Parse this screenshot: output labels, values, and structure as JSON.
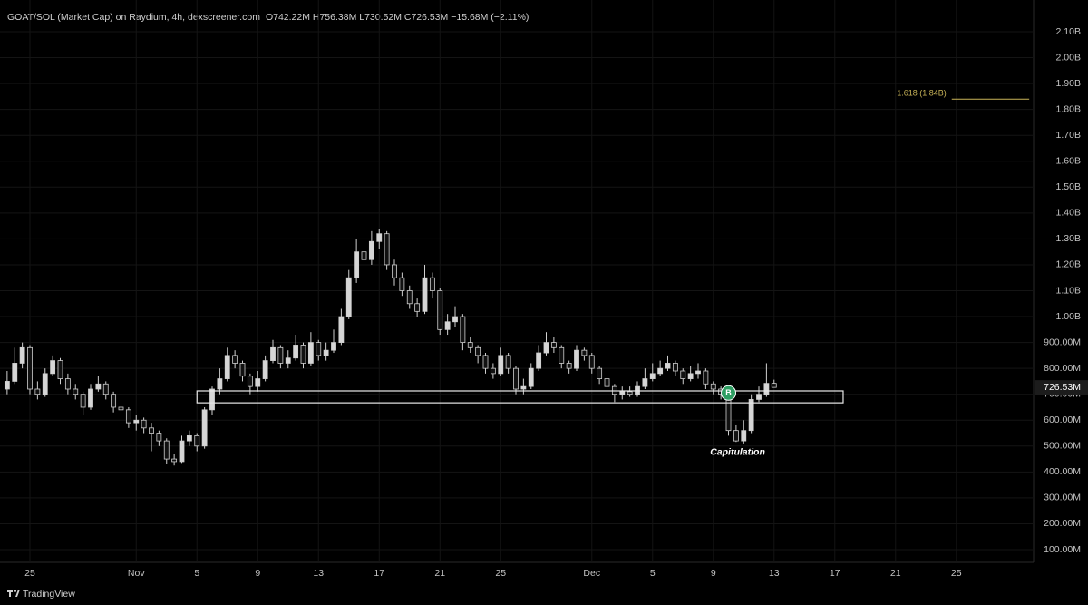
{
  "chart_data": {
    "type": "candlestick",
    "title": "GOAT/SOL (Market Cap) on Raydium, 4h, dexscreener.com",
    "subtitle": "O742.22M H756.38M L730.52M C726.53M −15.68M (−2.11%)",
    "footer": "TradingView",
    "up_color": "#d6d6d6",
    "down_color": "#111111",
    "grid": true,
    "xlim": [
      -1.97,
      65.79
    ],
    "xticks": [
      {
        "value": 0,
        "label": "25"
      },
      {
        "value": 7,
        "label": "Nov"
      },
      {
        "value": 11,
        "label": "5"
      },
      {
        "value": 15,
        "label": "9"
      },
      {
        "value": 19,
        "label": "13"
      },
      {
        "value": 23,
        "label": "17"
      },
      {
        "value": 27,
        "label": "21"
      },
      {
        "value": 31,
        "label": "25"
      },
      {
        "value": 37,
        "label": "Dec"
      },
      {
        "value": 41,
        "label": "5"
      },
      {
        "value": 45,
        "label": "9"
      },
      {
        "value": 49,
        "label": "13"
      },
      {
        "value": 53,
        "label": "17"
      },
      {
        "value": 57,
        "label": "21"
      },
      {
        "value": 61,
        "label": "25"
      }
    ],
    "ylim": [
      51,
      2152.5
    ],
    "yticks": [
      {
        "value": 100,
        "label": "100.00M"
      },
      {
        "value": 200,
        "label": "200.00M"
      },
      {
        "value": 300,
        "label": "300.00M"
      },
      {
        "value": 400,
        "label": "400.00M"
      },
      {
        "value": 500,
        "label": "500.00M"
      },
      {
        "value": 600,
        "label": "600.00M"
      },
      {
        "value": 700,
        "label": "700.00M"
      },
      {
        "value": 800,
        "label": "800.00M"
      },
      {
        "value": 900,
        "label": "900.00M"
      },
      {
        "value": 1000,
        "label": "1.00B"
      },
      {
        "value": 1100,
        "label": "1.10B"
      },
      {
        "value": 1200,
        "label": "1.20B"
      },
      {
        "value": 1300,
        "label": "1.30B"
      },
      {
        "value": 1400,
        "label": "1.40B"
      },
      {
        "value": 1500,
        "label": "1.50B"
      },
      {
        "value": 1600,
        "label": "1.60B"
      },
      {
        "value": 1700,
        "label": "1.70B"
      },
      {
        "value": 1800,
        "label": "1.80B"
      },
      {
        "value": 1900,
        "label": "1.90B"
      },
      {
        "value": 2000,
        "label": "2.00B"
      },
      {
        "value": 2100,
        "label": "2.10B"
      }
    ],
    "x": [
      -1.5,
      -1,
      -0.5,
      0,
      0.5,
      1,
      1.5,
      2,
      2.5,
      3,
      3.5,
      4,
      4.5,
      5,
      5.5,
      6,
      6.5,
      7,
      7.5,
      8,
      8.5,
      9,
      9.5,
      10,
      10.5,
      11,
      11.5,
      12,
      12.5,
      13,
      13.5,
      14,
      14.5,
      15,
      15.5,
      16,
      16.5,
      17,
      17.5,
      18,
      18.5,
      19,
      19.5,
      20,
      20.5,
      21,
      21.5,
      22,
      22.5,
      23,
      23.5,
      24,
      24.5,
      25,
      25.5,
      26,
      26.5,
      27,
      27.5,
      28,
      28.5,
      29,
      29.5,
      30,
      30.5,
      31,
      31.5,
      32,
      32.5,
      33,
      33.5,
      34,
      34.5,
      35,
      35.5,
      36,
      36.5,
      37,
      37.5,
      38,
      38.5,
      39,
      39.5,
      40,
      40.5,
      41,
      41.5,
      42,
      42.5,
      43,
      43.5,
      44,
      44.5,
      45,
      45.5,
      46,
      46.5,
      47,
      47.5,
      48,
      48.5,
      49
    ],
    "open": [
      720,
      750,
      820,
      880,
      720,
      700,
      780,
      830,
      760,
      720,
      700,
      650,
      720,
      740,
      700,
      650,
      640,
      590,
      600,
      570,
      550,
      520,
      450,
      440,
      520,
      540,
      500,
      640,
      720,
      760,
      850,
      820,
      770,
      730,
      760,
      830,
      880,
      820,
      840,
      890,
      820,
      900,
      850,
      870,
      900,
      1000,
      1150,
      1250,
      1220,
      1290,
      1320,
      1200,
      1150,
      1100,
      1050,
      1020,
      1150,
      1100,
      950,
      980,
      1000,
      900,
      880,
      850,
      800,
      780,
      850,
      800,
      720,
      730,
      800,
      860,
      900,
      880,
      820,
      800,
      870,
      850,
      800,
      760,
      730,
      700,
      710,
      700,
      730,
      760,
      780,
      800,
      820,
      790,
      760,
      780,
      790,
      740,
      720,
      700,
      560,
      520,
      560,
      680,
      700,
      742.22
    ],
    "high": [
      790,
      880,
      900,
      890,
      750,
      800,
      850,
      840,
      780,
      740,
      710,
      740,
      770,
      750,
      710,
      670,
      650,
      620,
      610,
      590,
      560,
      530,
      470,
      540,
      560,
      550,
      650,
      730,
      800,
      880,
      870,
      830,
      780,
      790,
      850,
      910,
      890,
      870,
      930,
      900,
      940,
      910,
      900,
      950,
      1030,
      1180,
      1300,
      1270,
      1330,
      1340,
      1330,
      1220,
      1170,
      1120,
      1070,
      1200,
      1170,
      1110,
      1010,
      1040,
      1010,
      920,
      890,
      860,
      820,
      880,
      860,
      810,
      760,
      820,
      890,
      940,
      920,
      890,
      830,
      890,
      880,
      860,
      810,
      770,
      740,
      730,
      730,
      750,
      800,
      820,
      830,
      850,
      830,
      800,
      810,
      820,
      800,
      750,
      730,
      710,
      580,
      600,
      700,
      730,
      820,
      756.38
    ],
    "low": [
      700,
      740,
      800,
      700,
      680,
      690,
      770,
      740,
      700,
      680,
      620,
      640,
      710,
      680,
      630,
      620,
      570,
      560,
      550,
      480,
      500,
      430,
      425,
      435,
      500,
      480,
      490,
      620,
      700,
      750,
      800,
      750,
      700,
      710,
      750,
      820,
      800,
      800,
      830,
      800,
      810,
      830,
      830,
      860,
      890,
      990,
      1130,
      1180,
      1200,
      1260,
      1180,
      1120,
      1080,
      1030,
      1000,
      1010,
      1070,
      930,
      930,
      960,
      870,
      860,
      820,
      780,
      760,
      770,
      780,
      700,
      700,
      720,
      790,
      850,
      860,
      800,
      780,
      790,
      830,
      780,
      740,
      710,
      670,
      680,
      690,
      690,
      720,
      750,
      770,
      790,
      770,
      740,
      750,
      760,
      720,
      700,
      680,
      540,
      516,
      510,
      550,
      670,
      690,
      730.52
    ],
    "close": [
      750,
      820,
      880,
      720,
      700,
      780,
      830,
      760,
      720,
      700,
      650,
      720,
      740,
      700,
      650,
      640,
      590,
      600,
      570,
      550,
      520,
      450,
      440,
      520,
      540,
      500,
      640,
      720,
      760,
      850,
      820,
      770,
      730,
      760,
      830,
      880,
      820,
      840,
      890,
      820,
      900,
      850,
      870,
      900,
      1000,
      1150,
      1250,
      1220,
      1290,
      1320,
      1200,
      1150,
      1100,
      1050,
      1020,
      1150,
      1100,
      950,
      980,
      1000,
      900,
      880,
      850,
      800,
      780,
      850,
      800,
      720,
      730,
      800,
      860,
      900,
      880,
      820,
      800,
      870,
      850,
      800,
      760,
      730,
      700,
      710,
      700,
      730,
      760,
      780,
      800,
      820,
      790,
      760,
      780,
      790,
      740,
      720,
      700,
      560,
      520,
      560,
      680,
      700,
      742.22,
      726.53
    ],
    "last_price_label": "726.53M",
    "zone": {
      "x0": 11,
      "x1": 53.55,
      "y0": 667,
      "y1": 713
    },
    "fib": {
      "label": "1.618 (1.84B)",
      "value": 1840,
      "x0": 60.7,
      "x1": 65.8,
      "color": "#c9b458"
    },
    "marker": {
      "text": "B",
      "x": 46.0,
      "y": 705,
      "color": "#2e9e62"
    },
    "annotation": {
      "text": "Capitulation",
      "x": 46.6,
      "y": 475
    }
  }
}
